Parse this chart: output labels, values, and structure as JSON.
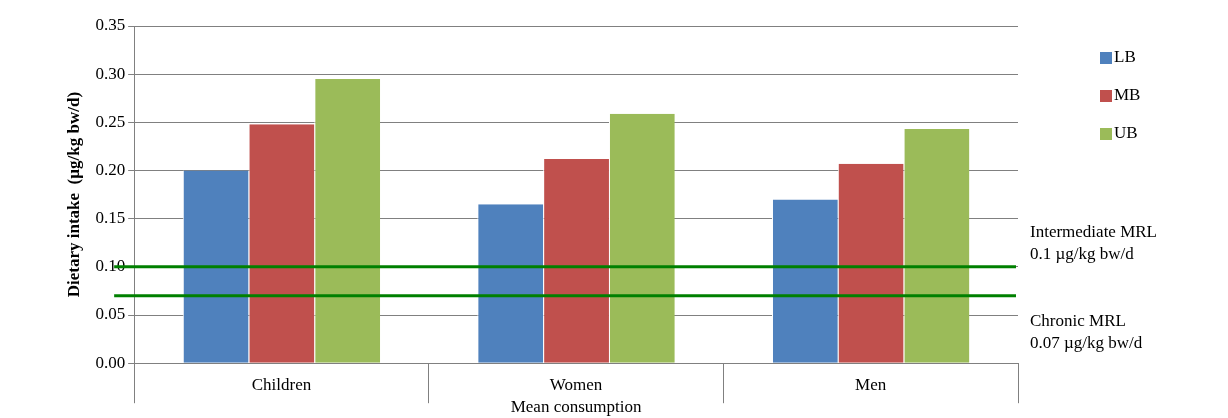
{
  "chart_data": {
    "type": "bar",
    "ylabel": "Dietary intake  (µg/kg bw/d)",
    "xlabel": "Mean consumption",
    "categories": [
      "Children",
      "Women",
      "Men"
    ],
    "series": [
      {
        "name": "LB",
        "color": "#4f81bd",
        "values": [
          0.2,
          0.165,
          0.17
        ]
      },
      {
        "name": "MB",
        "color": "#c0504d",
        "values": [
          0.248,
          0.212,
          0.207
        ]
      },
      {
        "name": "UB",
        "color": "#9bbb59",
        "values": [
          0.295,
          0.259,
          0.243
        ]
      }
    ],
    "ylim": [
      0,
      0.35
    ],
    "yticks": [
      {
        "value": 0,
        "label": "0.00"
      },
      {
        "value": 0.05,
        "label": "0.05"
      },
      {
        "value": 0.1,
        "label": "0.10"
      },
      {
        "value": 0.15,
        "label": "0.15"
      },
      {
        "value": 0.2,
        "label": "0.20"
      },
      {
        "value": 0.25,
        "label": "0.25"
      },
      {
        "value": 0.3,
        "label": "0.30"
      },
      {
        "value": 0.35,
        "label": "0.35"
      }
    ],
    "ref_lines": [
      {
        "axis": "y",
        "value": 0.1,
        "label": "Intermediate MRL\n0.1 µg/kg bw/d",
        "color": "#008000"
      },
      {
        "axis": "y",
        "value": 0.07,
        "label": "Chronic MRL\n0.07 µg/kg bw/d",
        "color": "#008000"
      }
    ],
    "grid": "y",
    "legend": "top right"
  }
}
